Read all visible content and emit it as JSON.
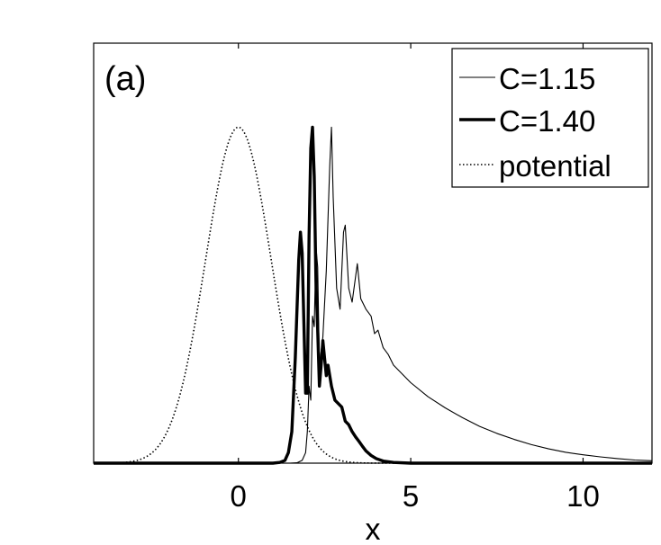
{
  "chart_data": {
    "type": "line",
    "panel_label": "(a)",
    "xlabel": "x",
    "ylabel": "",
    "xlim": [
      -4.2,
      12
    ],
    "ylim": [
      0,
      1.2
    ],
    "x_ticks": [
      0,
      5,
      10
    ],
    "x_tick_labels": [
      "0",
      "5",
      "10"
    ],
    "grid": false,
    "legend_position": "top-right",
    "series": [
      {
        "name": "C=1.15",
        "style": "thin-solid",
        "points": [
          [
            -4.2,
            0
          ],
          [
            1.5,
            0
          ],
          [
            1.7,
            0.001
          ],
          [
            1.85,
            0.008
          ],
          [
            1.95,
            0.03
          ],
          [
            2.0,
            0.09
          ],
          [
            2.05,
            0.22
          ],
          [
            2.1,
            0.18
          ],
          [
            2.15,
            0.42
          ],
          [
            2.2,
            0.39
          ],
          [
            2.25,
            0.62
          ],
          [
            2.3,
            0.56
          ],
          [
            2.35,
            0.28
          ],
          [
            2.45,
            0.36
          ],
          [
            2.55,
            0.55
          ],
          [
            2.65,
            0.85
          ],
          [
            2.7,
            0.96
          ],
          [
            2.75,
            0.76
          ],
          [
            2.85,
            0.5
          ],
          [
            2.95,
            0.44
          ],
          [
            3.05,
            0.66
          ],
          [
            3.1,
            0.68
          ],
          [
            3.2,
            0.5
          ],
          [
            3.3,
            0.46
          ],
          [
            3.45,
            0.57
          ],
          [
            3.55,
            0.47
          ],
          [
            3.7,
            0.44
          ],
          [
            3.85,
            0.42
          ],
          [
            3.95,
            0.37
          ],
          [
            4.05,
            0.38
          ],
          [
            4.2,
            0.33
          ],
          [
            4.35,
            0.31
          ],
          [
            4.5,
            0.28
          ],
          [
            5.0,
            0.23
          ],
          [
            5.5,
            0.19
          ],
          [
            6.0,
            0.158
          ],
          [
            6.5,
            0.13
          ],
          [
            7.0,
            0.105
          ],
          [
            7.5,
            0.085
          ],
          [
            8.0,
            0.068
          ],
          [
            8.5,
            0.053
          ],
          [
            9.0,
            0.041
          ],
          [
            9.5,
            0.031
          ],
          [
            10.0,
            0.024
          ],
          [
            10.5,
            0.018
          ],
          [
            11.0,
            0.013
          ],
          [
            11.5,
            0.009
          ],
          [
            12.0,
            0.007
          ]
        ]
      },
      {
        "name": "C=1.40",
        "style": "thick-solid",
        "points": [
          [
            -4.2,
            0
          ],
          [
            1.0,
            0
          ],
          [
            1.2,
            0.002
          ],
          [
            1.35,
            0.008
          ],
          [
            1.45,
            0.03
          ],
          [
            1.55,
            0.09
          ],
          [
            1.65,
            0.3
          ],
          [
            1.75,
            0.58
          ],
          [
            1.8,
            0.66
          ],
          [
            1.85,
            0.6
          ],
          [
            1.9,
            0.4
          ],
          [
            1.95,
            0.2
          ],
          [
            2.0,
            0.2
          ],
          [
            2.05,
            0.65
          ],
          [
            2.1,
            0.9
          ],
          [
            2.15,
            0.96
          ],
          [
            2.2,
            0.82
          ],
          [
            2.25,
            0.52
          ],
          [
            2.3,
            0.38
          ],
          [
            2.35,
            0.22
          ],
          [
            2.4,
            0.28
          ],
          [
            2.45,
            0.35
          ],
          [
            2.5,
            0.3
          ],
          [
            2.55,
            0.25
          ],
          [
            2.6,
            0.28
          ],
          [
            2.7,
            0.22
          ],
          [
            2.8,
            0.18
          ],
          [
            2.9,
            0.17
          ],
          [
            3.0,
            0.16
          ],
          [
            3.1,
            0.12
          ],
          [
            3.2,
            0.11
          ],
          [
            3.3,
            0.09
          ],
          [
            3.4,
            0.075
          ],
          [
            3.5,
            0.062
          ],
          [
            3.6,
            0.048
          ],
          [
            3.7,
            0.035
          ],
          [
            3.85,
            0.022
          ],
          [
            4.0,
            0.013
          ],
          [
            4.2,
            0.006
          ],
          [
            4.5,
            0.002
          ],
          [
            5.0,
            0
          ],
          [
            12.0,
            0
          ]
        ]
      },
      {
        "name": "potential",
        "style": "dotted",
        "function": "gaussian",
        "amplitude": 0.96,
        "center": 0,
        "sigma": 0.95
      }
    ]
  }
}
